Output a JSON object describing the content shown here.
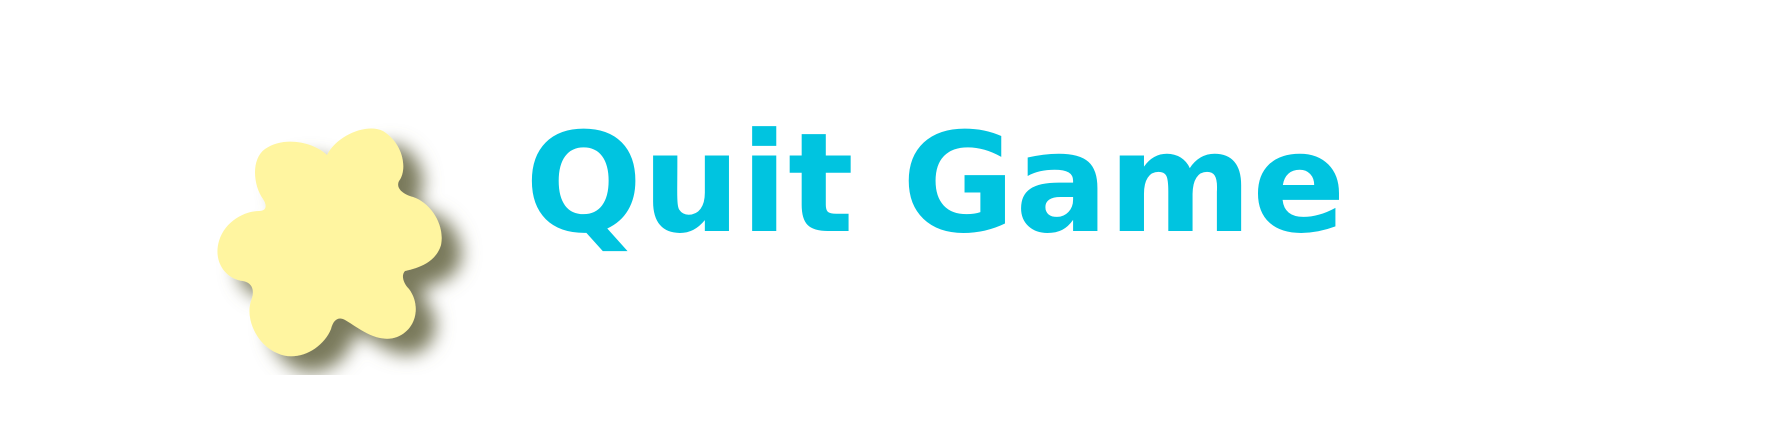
{
  "menu": {
    "quit_label": "Quit Game"
  },
  "colors": {
    "label": "#00c4e0",
    "blob_fill": "#fff5a0",
    "blob_shadow": "#8a8a6a",
    "background": "#ffffff"
  },
  "icons": {
    "button_decoration": "yellow-splat-icon"
  }
}
